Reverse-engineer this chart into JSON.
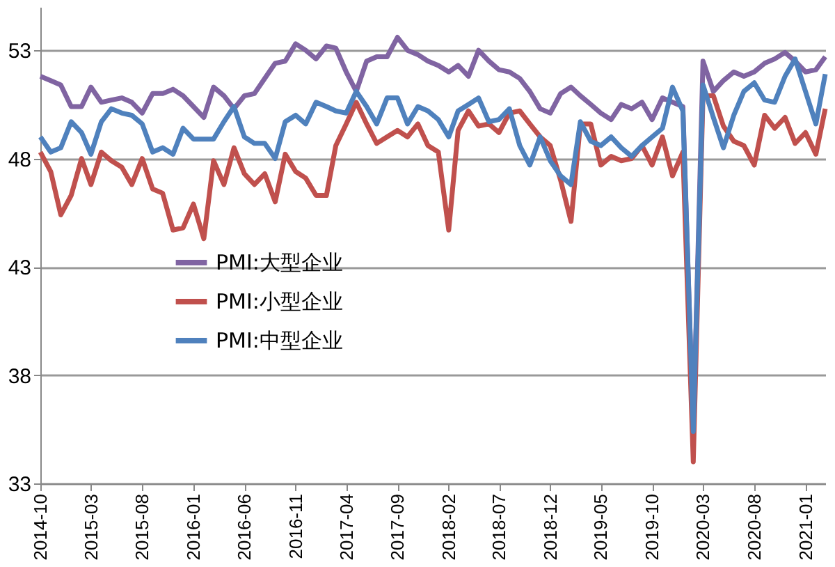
{
  "chart_data": {
    "type": "line",
    "x": [
      "2014-10",
      "2014-11",
      "2014-12",
      "2015-01",
      "2015-02",
      "2015-03",
      "2015-04",
      "2015-05",
      "2015-06",
      "2015-07",
      "2015-08",
      "2015-09",
      "2015-10",
      "2015-11",
      "2015-12",
      "2016-01",
      "2016-02",
      "2016-03",
      "2016-04",
      "2016-05",
      "2016-06",
      "2016-07",
      "2016-08",
      "2016-09",
      "2016-10",
      "2016-11",
      "2016-12",
      "2017-01",
      "2017-02",
      "2017-03",
      "2017-04",
      "2017-05",
      "2017-06",
      "2017-07",
      "2017-08",
      "2017-09",
      "2017-10",
      "2017-11",
      "2017-12",
      "2018-01",
      "2018-02",
      "2018-03",
      "2018-04",
      "2018-05",
      "2018-06",
      "2018-07",
      "2018-08",
      "2018-09",
      "2018-10",
      "2018-11",
      "2018-12",
      "2019-01",
      "2019-02",
      "2019-03",
      "2019-04",
      "2019-05",
      "2019-06",
      "2019-07",
      "2019-08",
      "2019-09",
      "2019-10",
      "2019-11",
      "2019-12",
      "2020-01",
      "2020-02",
      "2020-03",
      "2020-04",
      "2020-05",
      "2020-06",
      "2020-07",
      "2020-08",
      "2020-09",
      "2020-10",
      "2020-11",
      "2020-12",
      "2021-01",
      "2021-02",
      "2021-03"
    ],
    "series": [
      {
        "name": "PMI:大型企业",
        "color": "#8064a2",
        "values": [
          51.8,
          51.6,
          51.4,
          50.4,
          50.4,
          51.3,
          50.6,
          50.7,
          50.8,
          50.6,
          50.1,
          51.0,
          51.0,
          51.2,
          50.9,
          50.4,
          49.9,
          51.3,
          50.9,
          50.3,
          50.9,
          51.0,
          51.7,
          52.4,
          52.5,
          53.3,
          53.0,
          52.6,
          53.2,
          53.1,
          52.0,
          51.1,
          52.5,
          52.7,
          52.7,
          53.6,
          53.0,
          52.8,
          52.5,
          52.3,
          52.0,
          52.3,
          51.8,
          53.0,
          52.5,
          52.1,
          52.0,
          51.7,
          51.1,
          50.3,
          50.1,
          51.0,
          51.3,
          50.9,
          50.5,
          50.1,
          49.8,
          50.5,
          50.3,
          50.6,
          49.8,
          50.8,
          50.6,
          50.4,
          35.4,
          52.5,
          51.1,
          51.6,
          52.0,
          51.8,
          52.0,
          52.4,
          52.6,
          52.9,
          52.5,
          52.0,
          52.1,
          52.7
        ]
      },
      {
        "name": "PMI:小型企业",
        "color": "#c0504d",
        "values": [
          48.3,
          47.4,
          45.4,
          46.3,
          48.0,
          46.8,
          48.3,
          47.9,
          47.6,
          46.8,
          48.0,
          46.6,
          46.4,
          44.7,
          44.8,
          45.9,
          44.3,
          47.9,
          46.8,
          48.5,
          47.3,
          46.8,
          47.3,
          46.0,
          48.2,
          47.4,
          47.1,
          46.3,
          46.3,
          48.6,
          49.6,
          50.6,
          49.6,
          48.7,
          49.0,
          49.3,
          49.0,
          49.6,
          48.6,
          48.3,
          44.7,
          49.3,
          50.2,
          49.5,
          49.6,
          49.2,
          50.1,
          50.2,
          49.6,
          49.0,
          48.6,
          47.0,
          45.1,
          49.6,
          49.6,
          47.7,
          48.1,
          47.9,
          48.0,
          48.6,
          47.7,
          49.0,
          47.2,
          48.3,
          34.0,
          50.9,
          50.9,
          49.5,
          48.8,
          48.6,
          47.7,
          50.0,
          49.4,
          49.9,
          48.7,
          49.2,
          48.2,
          50.3
        ]
      },
      {
        "name": "PMI:中型企业",
        "color": "#4f81bd",
        "values": [
          49.0,
          48.3,
          48.5,
          49.7,
          49.2,
          48.2,
          49.7,
          50.3,
          50.1,
          50.0,
          49.6,
          48.3,
          48.5,
          48.2,
          49.4,
          48.9,
          48.9,
          48.9,
          49.7,
          50.4,
          49.0,
          48.7,
          48.7,
          48.0,
          49.7,
          50.0,
          49.6,
          50.6,
          50.4,
          50.2,
          50.1,
          51.1,
          50.4,
          49.6,
          50.8,
          50.8,
          49.6,
          50.4,
          50.2,
          49.8,
          49.0,
          50.2,
          50.5,
          50.8,
          49.7,
          49.8,
          50.3,
          48.6,
          47.7,
          49.0,
          47.9,
          47.2,
          46.8,
          49.7,
          48.8,
          48.6,
          49.0,
          48.5,
          48.1,
          48.6,
          49.0,
          49.4,
          51.3,
          50.2,
          35.4,
          51.4,
          49.9,
          48.5,
          50.0,
          51.1,
          51.5,
          50.7,
          50.6,
          51.8,
          52.6,
          51.1,
          49.6,
          51.9
        ]
      }
    ],
    "xlim": [
      "2014-10",
      "2021-03"
    ],
    "xticks": [
      "2014-10",
      "2015-03",
      "2015-08",
      "2016-01",
      "2016-06",
      "2016-11",
      "2017-04",
      "2017-09",
      "2018-02",
      "2018-07",
      "2018-12",
      "2019-05",
      "2019-10",
      "2020-03",
      "2020-08",
      "2021-01"
    ],
    "ylim": [
      33,
      55
    ],
    "yticks": [
      33,
      38,
      43,
      48,
      53
    ],
    "grid": "y",
    "legend": "left",
    "marker": "none",
    "line_style": "solid"
  }
}
